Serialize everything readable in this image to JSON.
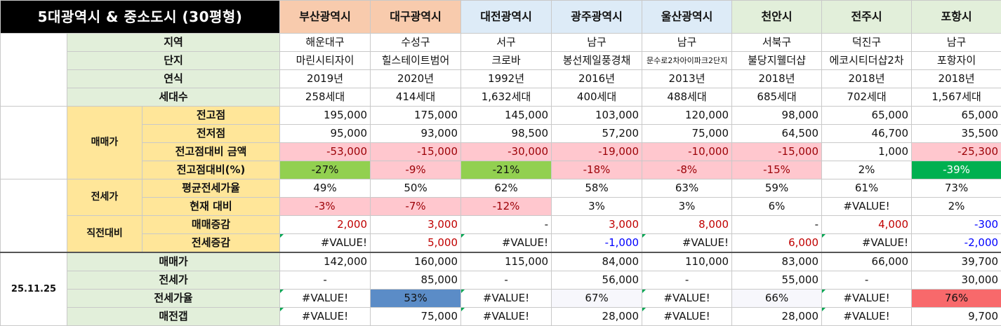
{
  "title": "5대광역시 & 중소도시 (30평형)",
  "cities": [
    "부산광역시",
    "대구광역시",
    "대전광역시",
    "광주광역시",
    "울산광역시",
    "천안시",
    "전주시",
    "포항시"
  ],
  "info": {
    "district_label": "지역",
    "districts": [
      "해운대구",
      "수성구",
      "서구",
      "남구",
      "남구",
      "서북구",
      "덕진구",
      "남구"
    ],
    "complex_label": "단지",
    "complexes": [
      "마린시티자이",
      "힐스테이트범어",
      "크로바",
      "봉선제일풍경채",
      "문수로2차아이파크2단지",
      "불당지웰더샵",
      "에코시티더샵2차",
      "포항자이"
    ],
    "year_label": "연식",
    "years": [
      "2019년",
      "2020년",
      "1992년",
      "2016년",
      "2013년",
      "2018년",
      "2018년",
      "2018년"
    ],
    "households_label": "세대수",
    "households": [
      "258세대",
      "414세대",
      "1,632세대",
      "400세대",
      "488세대",
      "685세대",
      "702세대",
      "1,567세대"
    ]
  },
  "sale": {
    "section_label": "매매가",
    "peak_label": "전고점",
    "peak": [
      "195,000",
      "175,000",
      "145,000",
      "103,000",
      "120,000",
      "98,000",
      "65,000",
      "65,000"
    ],
    "low_label": "전저점",
    "low": [
      "95,000",
      "93,000",
      "98,500",
      "57,200",
      "75,000",
      "64,500",
      "46,700",
      "35,500"
    ],
    "diff_label": "전고점대비 금액",
    "diff": [
      "-53,000",
      "-15,000",
      "-30,000",
      "-19,000",
      "-10,000",
      "-15,000",
      "1,000",
      "-25,300"
    ],
    "pct_label": "전고점대비(%)",
    "pct": [
      "-27%",
      "-9%",
      "-21%",
      "-18%",
      "-8%",
      "-15%",
      "2%",
      "-39%"
    ]
  },
  "jeonse": {
    "section_label": "전세가",
    "avg_label": "평균전세가율",
    "avg": [
      "49%",
      "50%",
      "62%",
      "58%",
      "63%",
      "59%",
      "61%",
      "73%"
    ],
    "now_label": "현재 대비",
    "now": [
      "-3%",
      "-7%",
      "-12%",
      "3%",
      "3%",
      "6%",
      "#VALUE!",
      "2%"
    ]
  },
  "direct": {
    "section_label": "직전대비",
    "sale_change_label": "매매증감",
    "sale_change": [
      "2,000",
      "3,000",
      "-",
      "3,000",
      "8,000",
      "-",
      "4,000",
      "-300"
    ],
    "jeonse_change_label": "전세증감",
    "jeonse_change": [
      "#VALUE!",
      "5,000",
      "#VALUE!",
      "-1,000",
      "#VALUE!",
      "6,000",
      "#VALUE!",
      "-2,000"
    ]
  },
  "current": {
    "date": "25.11.25",
    "sale_label": "매매가",
    "sale": [
      "142,000",
      "160,000",
      "115,000",
      "84,000",
      "110,000",
      "83,000",
      "66,000",
      "39,700"
    ],
    "jeonse_label": "전세가",
    "jeonse": [
      "-",
      "85,000",
      "-",
      "56,000",
      "-",
      "55,000",
      "-",
      "30,000"
    ],
    "ratio_label": "전세가율",
    "ratio": [
      "#VALUE!",
      "53%",
      "#VALUE!",
      "67%",
      "#VALUE!",
      "66%",
      "#VALUE!",
      "76%"
    ],
    "gap_label": "매전갭",
    "gap": [
      "#VALUE!",
      "75,000",
      "#VALUE!",
      "28,000",
      "#VALUE!",
      "28,000",
      "#VALUE!",
      "9,700"
    ]
  }
}
